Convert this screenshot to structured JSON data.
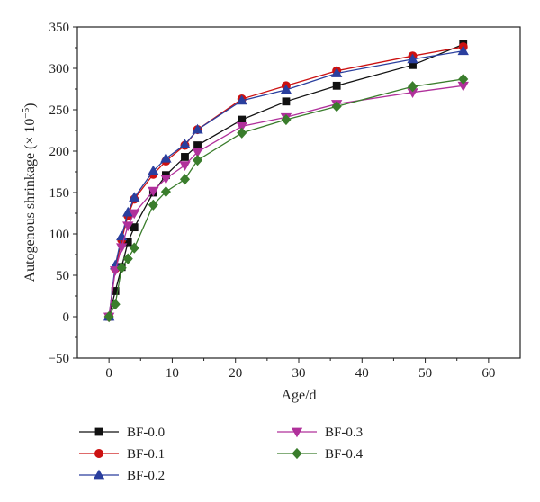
{
  "chart_data": {
    "type": "line",
    "xlabel": "Age/d",
    "ylabel_main": "Autogenous shrinkage (× 10",
    "ylabel_sup": "−5",
    "ylabel_close": ")",
    "xlim": [
      -5,
      65
    ],
    "ylim": [
      -50,
      350
    ],
    "xticks": [
      0,
      10,
      20,
      30,
      40,
      50,
      60
    ],
    "yticks": [
      -50,
      0,
      50,
      100,
      150,
      200,
      250,
      300,
      350
    ],
    "grid": false,
    "legend_position": "bottom",
    "series": [
      {
        "name": "BF-0.0",
        "color": "#111111",
        "marker": "square",
        "x": [
          0,
          1,
          2,
          3,
          4,
          7,
          9,
          12,
          14,
          21,
          28,
          36,
          48,
          56
        ],
        "y": [
          0,
          31,
          60,
          90,
          108,
          150,
          171,
          193,
          207,
          238,
          260,
          279,
          304,
          329
        ]
      },
      {
        "name": "BF-0.1",
        "color": "#cc1111",
        "marker": "circle",
        "x": [
          0,
          1,
          2,
          3,
          4,
          7,
          9,
          12,
          14,
          21,
          28,
          36,
          48,
          56
        ],
        "y": [
          0,
          58,
          93,
          122,
          142,
          172,
          188,
          207,
          226,
          263,
          279,
          297,
          315,
          326
        ]
      },
      {
        "name": "BF-0.2",
        "color": "#2a3f9e",
        "marker": "triangle-up",
        "x": [
          0,
          1,
          2,
          3,
          4,
          7,
          9,
          12,
          14,
          21,
          28,
          36,
          48,
          56
        ],
        "y": [
          0,
          62,
          97,
          126,
          144,
          176,
          191,
          208,
          226,
          261,
          274,
          294,
          311,
          321
        ]
      },
      {
        "name": "BF-0.3",
        "color": "#b0309b",
        "marker": "triangle-down",
        "x": [
          0,
          1,
          2,
          3,
          4,
          7,
          9,
          12,
          14,
          21,
          28,
          36,
          48,
          56
        ],
        "y": [
          0,
          56,
          84,
          110,
          125,
          152,
          167,
          183,
          199,
          230,
          241,
          257,
          271,
          279
        ]
      },
      {
        "name": "BF-0.4",
        "color": "#3a7d2c",
        "marker": "diamond",
        "x": [
          0,
          1,
          2,
          3,
          4,
          7,
          9,
          12,
          14,
          21,
          28,
          36,
          48,
          56
        ],
        "y": [
          0,
          15,
          59,
          70,
          83,
          135,
          151,
          166,
          189,
          222,
          238,
          254,
          278,
          287
        ]
      }
    ]
  }
}
